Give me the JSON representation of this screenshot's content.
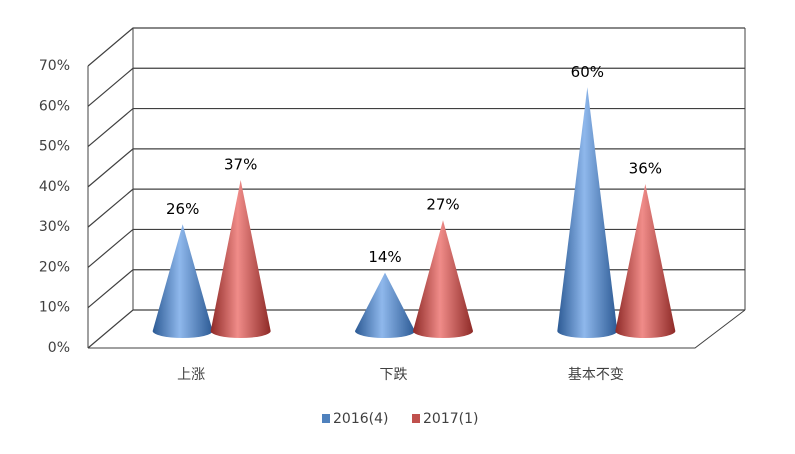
{
  "chart_data": {
    "type": "cone",
    "categories": [
      "上涨",
      "下跌",
      "基本不变"
    ],
    "series": [
      {
        "name": "2016(4)",
        "color": "#4f81bd",
        "values": [
          26,
          14,
          60
        ],
        "value_labels": [
          "26%",
          "14%",
          "60%"
        ]
      },
      {
        "name": "2017(1)",
        "color": "#c0504d",
        "values": [
          37,
          27,
          36
        ],
        "value_labels": [
          "37%",
          "27%",
          "36%"
        ]
      }
    ],
    "ylim": [
      0,
      70
    ],
    "yticks": [
      {
        "value": 0,
        "label": "0%"
      },
      {
        "value": 10,
        "label": "10%"
      },
      {
        "value": 20,
        "label": "20%"
      },
      {
        "value": 30,
        "label": "30%"
      },
      {
        "value": 40,
        "label": "40%"
      },
      {
        "value": 50,
        "label": "50%"
      },
      {
        "value": 60,
        "label": "60%"
      },
      {
        "value": 70,
        "label": "70%"
      }
    ],
    "grid": true,
    "legend": "bottom"
  }
}
